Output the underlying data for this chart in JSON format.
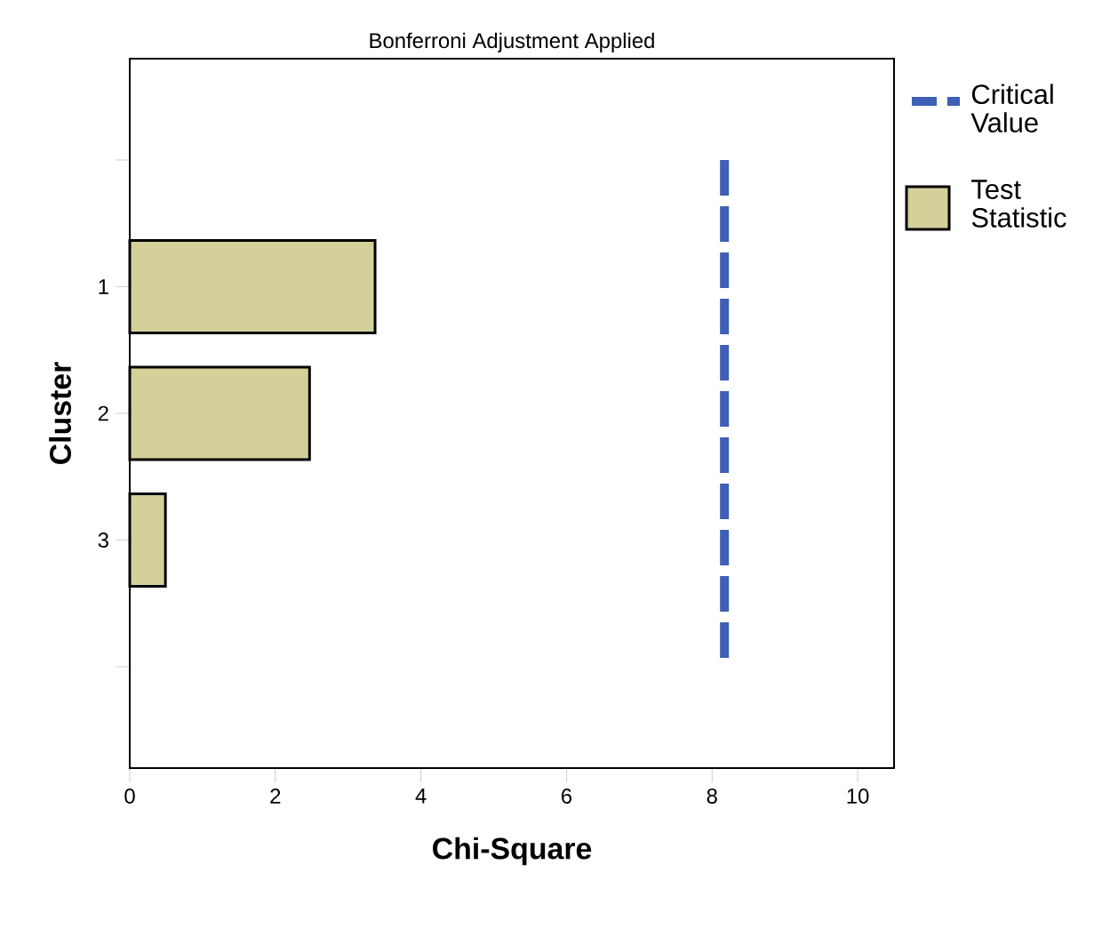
{
  "chart_data": {
    "type": "bar",
    "orientation": "horizontal",
    "title": "Bonferroni Adjustment Applied",
    "xlabel": "Chi-Square",
    "ylabel": "Cluster",
    "categories": [
      null,
      "1",
      "2",
      "3",
      null
    ],
    "series": [
      {
        "name": "Test Statistic",
        "color": "#d5d09a",
        "values": [
          null,
          3.37,
          2.47,
          0.49,
          null
        ]
      }
    ],
    "ref_lines": [
      {
        "axis": "x",
        "value": 8.17,
        "label": "Critical Value",
        "color": "#3f5eb5",
        "line_style": "dashed"
      }
    ],
    "xlim": [
      0,
      10.5
    ],
    "xticks": [
      0,
      2,
      4,
      6,
      8,
      10
    ],
    "grid": false,
    "legend": "right"
  }
}
